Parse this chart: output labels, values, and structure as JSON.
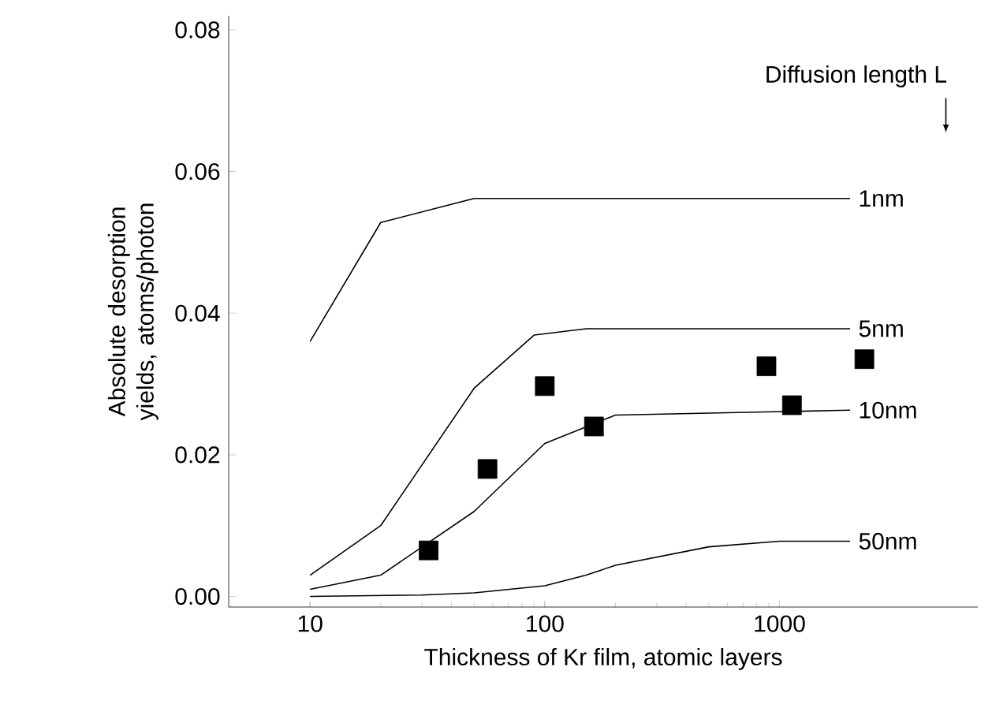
{
  "chart_data": {
    "type": "line",
    "xlabel": "Thickness of Kr film,  atomic layers",
    "ylabel": "Absolute desorption yields, atoms/photon",
    "log": "x",
    "xlim": [
      4.5,
      7000
    ],
    "ylim": [
      -0.0015,
      0.082
    ],
    "xticks": [
      10,
      100,
      1000
    ],
    "yticks": [
      {
        "value": 0,
        "label": "0.00"
      },
      {
        "value": 0.02,
        "label": "0.02"
      },
      {
        "value": 0.04,
        "label": "0.04"
      },
      {
        "value": 0.06,
        "label": "0.06"
      },
      {
        "value": 0.08,
        "label": "0.08"
      }
    ],
    "grid": false,
    "annotations": [
      "Diffusion length  L"
    ],
    "series": [
      {
        "name": "1nm",
        "color": "#000000",
        "x": [
          10,
          20,
          50,
          2000
        ],
        "values": [
          0.036,
          0.0528,
          0.0562,
          0.0562
        ]
      },
      {
        "name": "5nm",
        "color": "#000000",
        "x": [
          10,
          20,
          50,
          90,
          150,
          2000
        ],
        "values": [
          0.003,
          0.01,
          0.0294,
          0.0369,
          0.0378,
          0.0378
        ]
      },
      {
        "name": "10nm",
        "color": "#000000",
        "x": [
          10,
          20,
          50,
          100,
          200,
          2000
        ],
        "values": [
          0.001,
          0.003,
          0.012,
          0.0216,
          0.0256,
          0.0263
        ]
      },
      {
        "name": "50nm",
        "color": "#000000",
        "x": [
          10,
          30,
          50,
          100,
          150,
          200,
          500,
          1000,
          2000
        ],
        "values": [
          0,
          0.0002,
          0.0005,
          0.0015,
          0.003,
          0.0044,
          0.007,
          0.0078,
          0.0078
        ]
      },
      {
        "type": "scatter",
        "marker": "square",
        "color": "#000000",
        "x": [
          32,
          57,
          100,
          162,
          880,
          1130,
          2300
        ],
        "values": [
          0.0065,
          0.018,
          0.0297,
          0.024,
          0.0325,
          0.027,
          0.0335
        ]
      }
    ]
  }
}
